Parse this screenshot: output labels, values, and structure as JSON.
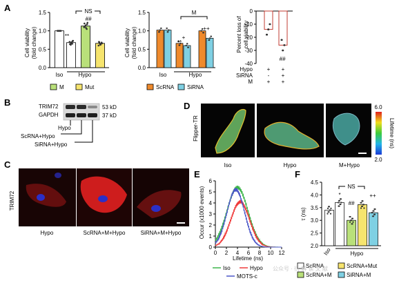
{
  "colors": {
    "M": "#b9e07a",
    "Mut": "#f6e46e",
    "ScRNA": "#ef8a2c",
    "SiRNA": "#7fd0e3",
    "Iso": "#ffffff",
    "Hypo": "#ef3b3b",
    "IsoLine": "#3cb54a",
    "MOTS": "#4a56c8",
    "loss": "#c23b32",
    "point": "#333333",
    "cellRed": "#d81f1f",
    "nucleus": "#2b2fc8"
  },
  "watermark": "公众号 · 衍 解 读 文 献",
  "panelA": {
    "letter": "A",
    "chart_data": [
      {
        "type": "bar",
        "ylabel": "Cell viability\n(fold change)",
        "ylim": [
          0,
          1.5
        ],
        "yticks": [
          "0.0",
          "0.5",
          "1.0",
          "1.5"
        ],
        "groups": [
          {
            "label": "Iso",
            "categories": [
              "Iso"
            ]
          },
          {
            "label": "Hypo",
            "categories": [
              "Hypo",
              "Hypo+M",
              "Hypo+Mut"
            ]
          }
        ],
        "series": [
          {
            "key": "Iso",
            "value": 1.0,
            "color": "Iso",
            "points": [
              1.0,
              1.0,
              1.0,
              1.0,
              1.0,
              1.0,
              1.0,
              1.0
            ]
          },
          {
            "key": "Hypo",
            "value": 0.68,
            "color": "Iso",
            "points": [
              0.62,
              0.65,
              0.7,
              0.66,
              0.72,
              0.64,
              0.69,
              0.73
            ]
          },
          {
            "key": "M",
            "value": 1.13,
            "color": "M",
            "points": [
              1.05,
              1.1,
              1.15,
              1.18,
              1.2,
              1.08,
              1.22,
              1.12
            ]
          },
          {
            "key": "Mut",
            "value": 0.66,
            "color": "Mut",
            "points": [
              0.6,
              0.64,
              0.68,
              0.7,
              0.62,
              0.66,
              0.69,
              0.65
            ]
          }
        ],
        "annotations": [
          "**",
          "NS",
          "##"
        ],
        "legend": [
          {
            "label": "M",
            "color": "M"
          },
          {
            "label": "Mut",
            "color": "Mut"
          }
        ]
      },
      {
        "type": "bar",
        "ylabel": "Cell viability\n(fold change)",
        "ylim": [
          0,
          1.5
        ],
        "yticks": [
          "0.0",
          "0.5",
          "1.0",
          "1.5"
        ],
        "groups": [
          {
            "label": "Iso",
            "categories": [
              "Iso"
            ]
          },
          {
            "label": "Hypo",
            "categories": [
              "Hypo",
              "Hypo+M"
            ]
          }
        ],
        "series": [
          {
            "key": "ScRNA",
            "values": [
              1.02,
              0.66,
              1.0
            ]
          },
          {
            "key": "SiRNA",
            "values": [
              1.02,
              0.6,
              0.8
            ]
          }
        ],
        "annotations": [
          "M",
          "+",
          "++",
          "**"
        ],
        "legend": [
          {
            "label": "ScRNA",
            "color": "ScRNA"
          },
          {
            "label": "SiRNA",
            "color": "SiRNA"
          }
        ]
      },
      {
        "type": "bar",
        "ylabel": "Percent loss of\ncell viability",
        "ylim": [
          -40,
          0
        ],
        "yticks": [
          "-40",
          "-30",
          "-20",
          "-10",
          "0"
        ],
        "values": [
          -14,
          -26
        ],
        "annotations": [
          "##"
        ],
        "table": {
          "rows": [
            {
              "label": "Hypo",
              "cells": [
                "+",
                "+"
              ]
            },
            {
              "label": "SiRNA",
              "cells": [
                "-",
                "+"
              ]
            },
            {
              "label": "M",
              "cells": [
                "+",
                "+"
              ]
            }
          ]
        }
      }
    ]
  },
  "panelB": {
    "letter": "B",
    "bands": [
      "TRIM72",
      "GAPDH"
    ],
    "sizes": [
      "53 kD",
      "37 kD"
    ],
    "lanes": [
      "Hypo",
      "ScRNA+Hypo",
      "SiRNA+Hypo"
    ]
  },
  "panelC": {
    "letter": "C",
    "ylabel": "TRIM72",
    "captions": [
      "Hypo",
      "ScRNA+M+Hypo",
      "SiRNA+M+Hypo"
    ]
  },
  "panelD": {
    "letter": "D",
    "ylabel": "Flipper-TR",
    "captions": [
      "Iso",
      "Hypo",
      "M+Hypo"
    ],
    "colorbar": {
      "title": "Lifetime (ns)",
      "max": "6.0",
      "min": "2.0"
    }
  },
  "panelE": {
    "letter": "E",
    "chart_data": {
      "type": "line",
      "ylabel": "Occur (x1000 events)",
      "xlabel": "Lifetime (ns)",
      "xlim": [
        0,
        12
      ],
      "ylim": [
        0,
        6
      ],
      "xticks": [
        0,
        2,
        4,
        6,
        8,
        10,
        12
      ],
      "yticks": [
        0,
        1,
        2,
        3,
        4,
        5,
        6
      ],
      "series": [
        {
          "name": "Iso",
          "color": "IsoLine",
          "peak": 5.4,
          "center": 4.0,
          "width": 1.9
        },
        {
          "name": "Hypo",
          "color": "Hypo",
          "peak": 4.1,
          "center": 4.5,
          "width": 1.7
        },
        {
          "name": "MOTS-c",
          "color": "MOTS",
          "peak": 5.2,
          "center": 3.7,
          "width": 1.6
        }
      ],
      "legend": [
        "Iso",
        "Hypo",
        "MOTS-c"
      ]
    }
  },
  "panelF": {
    "letter": "F",
    "chart_data": {
      "type": "bar",
      "ylabel": "τ (ns)",
      "ylim": [
        2.0,
        4.5
      ],
      "yticks": [
        "2.0",
        "2.5",
        "3.0",
        "3.5",
        "4.0",
        "4.5"
      ],
      "categories": [
        "Iso",
        "Hypo-ScRNA",
        "Hypo-ScRNA+M",
        "Hypo-ScRNA+Mut",
        "Hypo-SiRNA+M"
      ],
      "values": [
        3.4,
        3.7,
        3.0,
        3.62,
        3.3
      ],
      "annotations": [
        "NS",
        "*",
        "##",
        "++"
      ],
      "group_labels": [
        "Iso",
        "Hypo"
      ],
      "legend": [
        {
          "label": "ScRNA",
          "color": "ScRNA"
        },
        {
          "label": "ScRNA+Mut",
          "color": "Mut"
        },
        {
          "label": "ScRNA+M",
          "color": "M"
        },
        {
          "label": "SiRNA+M",
          "color": "SiRNA"
        }
      ]
    }
  }
}
